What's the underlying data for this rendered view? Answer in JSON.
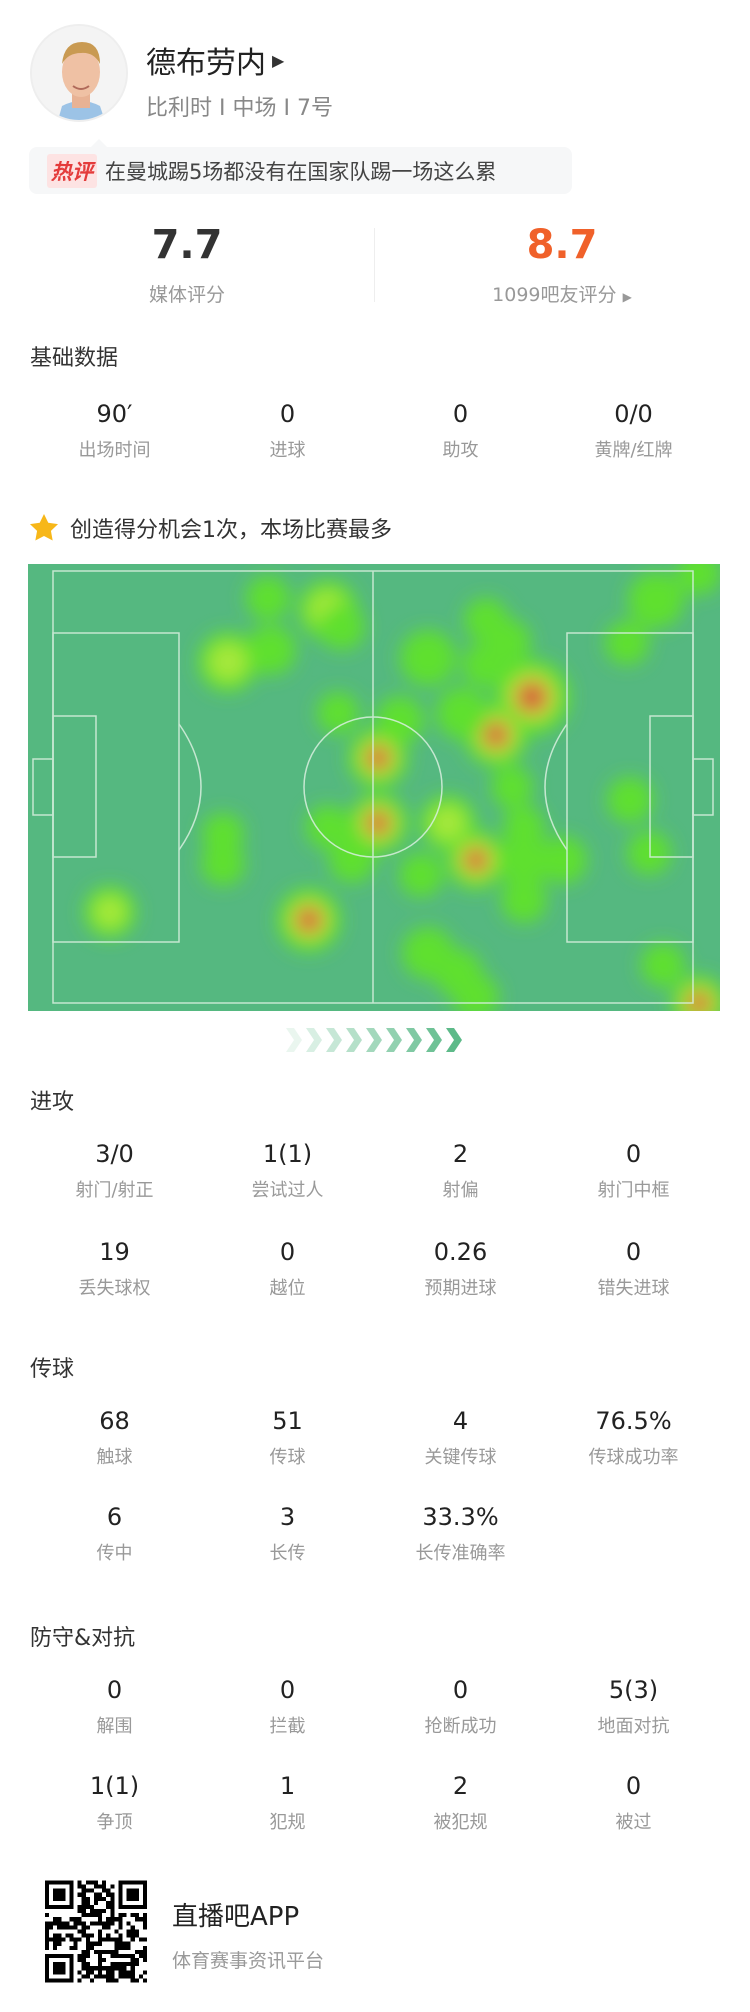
{
  "player": {
    "name": "德布劳内",
    "subtitle": "比利时 I 中场 I 7号"
  },
  "hot_comment": {
    "tag": "热评",
    "text": "在曼城踢5场都没有在国家队踢一场这么累"
  },
  "ratings": {
    "media": {
      "value": "7.7",
      "label": "媒体评分"
    },
    "fans": {
      "value": "8.7",
      "label": "1099吧友评分",
      "color": "#f0612a"
    }
  },
  "basic": {
    "title": "基础数据",
    "items": [
      {
        "v": "90′",
        "l": "出场时间"
      },
      {
        "v": "0",
        "l": "进球"
      },
      {
        "v": "0",
        "l": "助攻"
      },
      {
        "v": "0/0",
        "l": "黄牌/红牌"
      }
    ]
  },
  "highlight": {
    "icon": "star-icon",
    "text": "创造得分机会1次，本场比赛最多"
  },
  "attack": {
    "title": "进攻",
    "items": [
      {
        "v": "3/0",
        "l": "射门/射正"
      },
      {
        "v": "1(1)",
        "l": "尝试过人"
      },
      {
        "v": "2",
        "l": "射偏"
      },
      {
        "v": "0",
        "l": "射门中框"
      },
      {
        "v": "19",
        "l": "丢失球权"
      },
      {
        "v": "0",
        "l": "越位"
      },
      {
        "v": "0.26",
        "l": "预期进球"
      },
      {
        "v": "0",
        "l": "错失进球"
      }
    ]
  },
  "passing": {
    "title": "传球",
    "items": [
      {
        "v": "68",
        "l": "触球"
      },
      {
        "v": "51",
        "l": "传球"
      },
      {
        "v": "4",
        "l": "关键传球"
      },
      {
        "v": "76.5%",
        "l": "传球成功率"
      },
      {
        "v": "6",
        "l": "传中"
      },
      {
        "v": "3",
        "l": "长传"
      },
      {
        "v": "33.3%",
        "l": "长传准确率"
      }
    ]
  },
  "defense": {
    "title": "防守&对抗",
    "items": [
      {
        "v": "0",
        "l": "解围"
      },
      {
        "v": "0",
        "l": "拦截"
      },
      {
        "v": "0",
        "l": "抢断成功"
      },
      {
        "v": "5(3)",
        "l": "地面对抗"
      },
      {
        "v": "1(1)",
        "l": "争顶"
      },
      {
        "v": "1",
        "l": "犯规"
      },
      {
        "v": "2",
        "l": "被犯规"
      },
      {
        "v": "0",
        "l": "被过"
      }
    ]
  },
  "footer": {
    "app_name": "直播吧APP",
    "tagline": "体育赛事资讯平台"
  },
  "colors": {
    "pitch": "#55b880",
    "accent": "#f0612a",
    "arrow": "#4fb47f"
  }
}
